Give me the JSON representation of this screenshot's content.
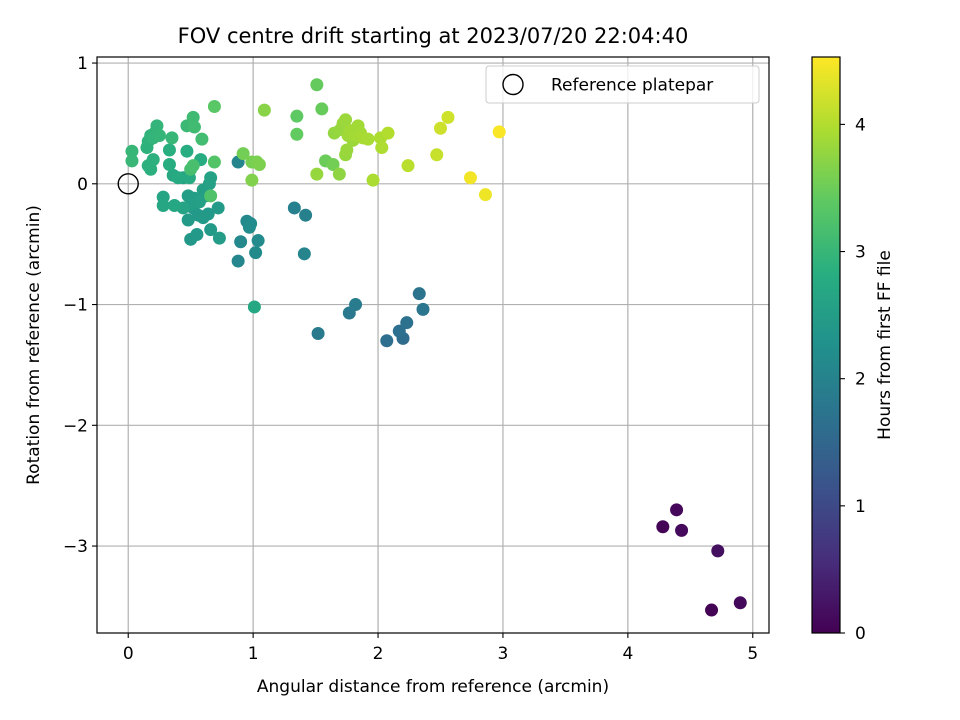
{
  "chart_data": {
    "type": "scatter",
    "title": "FOV centre drift starting at 2023/07/20 22:04:40",
    "xlabel": "Angular distance from reference (arcmin)",
    "ylabel": "Rotation from reference (arcmin)",
    "xlim": [
      -0.25,
      5.13
    ],
    "ylim": [
      -3.72,
      1.05
    ],
    "xticks": [
      0,
      1,
      2,
      3,
      4,
      5
    ],
    "yticks": [
      -3,
      -2,
      -1,
      0,
      1
    ],
    "ytick_labels": [
      "−3",
      "−2",
      "−1",
      "0",
      "1"
    ],
    "grid": true,
    "legend": {
      "position": "top-right",
      "entries": [
        "Reference platepar"
      ]
    },
    "reference_point": {
      "x": 0.0,
      "y": 0.0,
      "label": "Reference platepar"
    },
    "colorbar": {
      "label": "Hours from first FF file",
      "range": [
        0,
        4.53
      ],
      "ticks": [
        0,
        1,
        2,
        3,
        4
      ],
      "colormap": "viridis"
    },
    "points": [
      {
        "x": 4.28,
        "y": -2.84,
        "c": 0.05
      },
      {
        "x": 4.39,
        "y": -2.7,
        "c": 0.08
      },
      {
        "x": 4.43,
        "y": -2.87,
        "c": 0.12
      },
      {
        "x": 4.72,
        "y": -3.04,
        "c": 0.18
      },
      {
        "x": 4.67,
        "y": -3.53,
        "c": 0.02
      },
      {
        "x": 4.9,
        "y": -3.47,
        "c": 0.1
      },
      {
        "x": 2.07,
        "y": -1.3,
        "c": 1.62
      },
      {
        "x": 2.17,
        "y": -1.22,
        "c": 1.65
      },
      {
        "x": 2.2,
        "y": -1.28,
        "c": 1.6
      },
      {
        "x": 2.23,
        "y": -1.15,
        "c": 1.7
      },
      {
        "x": 2.33,
        "y": -0.91,
        "c": 1.72
      },
      {
        "x": 2.36,
        "y": -1.04,
        "c": 1.75
      },
      {
        "x": 1.52,
        "y": -1.24,
        "c": 1.85
      },
      {
        "x": 1.77,
        "y": -1.07,
        "c": 1.82
      },
      {
        "x": 1.82,
        "y": -1.0,
        "c": 1.88
      },
      {
        "x": 1.33,
        "y": -0.2,
        "c": 1.95
      },
      {
        "x": 1.42,
        "y": -0.26,
        "c": 1.98
      },
      {
        "x": 1.41,
        "y": -0.58,
        "c": 2.02
      },
      {
        "x": 0.88,
        "y": 0.18,
        "c": 2.05
      },
      {
        "x": 0.88,
        "y": -0.64,
        "c": 2.08
      },
      {
        "x": 0.9,
        "y": -0.48,
        "c": 2.1
      },
      {
        "x": 0.95,
        "y": -0.31,
        "c": 2.12
      },
      {
        "x": 0.98,
        "y": -0.33,
        "c": 2.15
      },
      {
        "x": 0.97,
        "y": -0.36,
        "c": 2.18
      },
      {
        "x": 1.02,
        "y": -0.57,
        "c": 2.14
      },
      {
        "x": 1.04,
        "y": -0.47,
        "c": 2.16
      },
      {
        "x": 0.5,
        "y": -0.46,
        "c": 2.4
      },
      {
        "x": 0.55,
        "y": -0.42,
        "c": 2.42
      },
      {
        "x": 0.48,
        "y": -0.3,
        "c": 2.45
      },
      {
        "x": 0.52,
        "y": -0.2,
        "c": 2.4
      },
      {
        "x": 0.56,
        "y": -0.26,
        "c": 2.42
      },
      {
        "x": 0.6,
        "y": -0.28,
        "c": 2.44
      },
      {
        "x": 0.64,
        "y": -0.25,
        "c": 2.43
      },
      {
        "x": 0.66,
        "y": -0.38,
        "c": 2.45
      },
      {
        "x": 0.72,
        "y": -0.2,
        "c": 2.46
      },
      {
        "x": 0.73,
        "y": -0.45,
        "c": 2.48
      },
      {
        "x": 0.48,
        "y": -0.1,
        "c": 2.5
      },
      {
        "x": 0.5,
        "y": -0.17,
        "c": 2.52
      },
      {
        "x": 0.53,
        "y": -0.12,
        "c": 2.5
      },
      {
        "x": 0.57,
        "y": -0.15,
        "c": 2.55
      },
      {
        "x": 0.6,
        "y": -0.05,
        "c": 2.53
      },
      {
        "x": 0.62,
        "y": -0.1,
        "c": 2.54
      },
      {
        "x": 0.65,
        "y": 0.0,
        "c": 2.56
      },
      {
        "x": 0.66,
        "y": 0.05,
        "c": 2.58
      },
      {
        "x": 0.44,
        "y": 0.05,
        "c": 2.6
      },
      {
        "x": 0.44,
        "y": -0.2,
        "c": 2.62
      },
      {
        "x": 1.01,
        "y": -1.02,
        "c": 2.7
      },
      {
        "x": 0.28,
        "y": -0.11,
        "c": 2.66
      },
      {
        "x": 0.28,
        "y": -0.18,
        "c": 2.68
      },
      {
        "x": 0.37,
        "y": -0.18,
        "c": 2.7
      },
      {
        "x": 0.36,
        "y": 0.07,
        "c": 2.72
      },
      {
        "x": 0.4,
        "y": 0.05,
        "c": 2.74
      },
      {
        "x": 0.49,
        "y": 0.05,
        "c": 2.76
      },
      {
        "x": 0.58,
        "y": 0.2,
        "c": 2.78
      },
      {
        "x": 0.47,
        "y": 0.27,
        "c": 2.8
      },
      {
        "x": 0.33,
        "y": 0.16,
        "c": 2.82
      },
      {
        "x": 0.33,
        "y": 0.28,
        "c": 2.84
      },
      {
        "x": 0.18,
        "y": 0.12,
        "c": 2.86
      },
      {
        "x": 0.16,
        "y": 0.15,
        "c": 2.88
      },
      {
        "x": 0.2,
        "y": 0.2,
        "c": 2.88
      },
      {
        "x": 0.15,
        "y": 0.3,
        "c": 2.9
      },
      {
        "x": 0.16,
        "y": 0.35,
        "c": 2.9
      },
      {
        "x": 0.18,
        "y": 0.4,
        "c": 2.92
      },
      {
        "x": 0.2,
        "y": 0.38,
        "c": 2.95
      },
      {
        "x": 0.22,
        "y": 0.43,
        "c": 2.94
      },
      {
        "x": 0.23,
        "y": 0.48,
        "c": 2.96
      },
      {
        "x": 0.25,
        "y": 0.4,
        "c": 2.98
      },
      {
        "x": 0.03,
        "y": 0.27,
        "c": 3.0
      },
      {
        "x": 0.03,
        "y": 0.19,
        "c": 3.02
      },
      {
        "x": 0.35,
        "y": 0.38,
        "c": 3.0
      },
      {
        "x": 0.47,
        "y": 0.48,
        "c": 3.05
      },
      {
        "x": 0.52,
        "y": 0.55,
        "c": 3.08
      },
      {
        "x": 0.53,
        "y": 0.47,
        "c": 3.1
      },
      {
        "x": 0.59,
        "y": 0.37,
        "c": 3.12
      },
      {
        "x": 0.5,
        "y": 0.12,
        "c": 3.15
      },
      {
        "x": 0.52,
        "y": 0.15,
        "c": 3.18
      },
      {
        "x": 0.66,
        "y": -0.1,
        "c": 3.25
      },
      {
        "x": 0.69,
        "y": 0.18,
        "c": 3.28
      },
      {
        "x": 0.69,
        "y": 0.64,
        "c": 3.35
      },
      {
        "x": 0.92,
        "y": 0.25,
        "c": 3.55
      },
      {
        "x": 0.99,
        "y": 0.18,
        "c": 3.58
      },
      {
        "x": 1.03,
        "y": 0.18,
        "c": 3.6
      },
      {
        "x": 1.05,
        "y": 0.16,
        "c": 3.62
      },
      {
        "x": 0.99,
        "y": 0.03,
        "c": 3.65
      },
      {
        "x": 1.09,
        "y": 0.61,
        "c": 3.7
      },
      {
        "x": 1.35,
        "y": 0.56,
        "c": 3.4
      },
      {
        "x": 1.35,
        "y": 0.41,
        "c": 3.42
      },
      {
        "x": 1.51,
        "y": 0.82,
        "c": 3.44
      },
      {
        "x": 1.55,
        "y": 0.62,
        "c": 3.46
      },
      {
        "x": 1.58,
        "y": 0.19,
        "c": 3.5
      },
      {
        "x": 1.64,
        "y": 0.16,
        "c": 3.55
      },
      {
        "x": 1.51,
        "y": 0.08,
        "c": 3.8
      },
      {
        "x": 1.69,
        "y": 0.08,
        "c": 3.75
      },
      {
        "x": 1.65,
        "y": 0.42,
        "c": 3.78
      },
      {
        "x": 1.7,
        "y": 0.45,
        "c": 3.8
      },
      {
        "x": 1.72,
        "y": 0.5,
        "c": 3.82
      },
      {
        "x": 1.74,
        "y": 0.53,
        "c": 3.84
      },
      {
        "x": 1.76,
        "y": 0.4,
        "c": 3.86
      },
      {
        "x": 1.78,
        "y": 0.44,
        "c": 3.88
      },
      {
        "x": 1.8,
        "y": 0.36,
        "c": 3.85
      },
      {
        "x": 1.82,
        "y": 0.4,
        "c": 3.9
      },
      {
        "x": 1.84,
        "y": 0.48,
        "c": 3.88
      },
      {
        "x": 1.86,
        "y": 0.42,
        "c": 3.9
      },
      {
        "x": 1.88,
        "y": 0.38,
        "c": 3.92
      },
      {
        "x": 1.92,
        "y": 0.37,
        "c": 3.93
      },
      {
        "x": 1.74,
        "y": 0.24,
        "c": 3.8
      },
      {
        "x": 1.75,
        "y": 0.28,
        "c": 3.82
      },
      {
        "x": 1.96,
        "y": 0.03,
        "c": 3.95
      },
      {
        "x": 2.02,
        "y": 0.38,
        "c": 3.96
      },
      {
        "x": 2.03,
        "y": 0.3,
        "c": 3.97
      },
      {
        "x": 2.08,
        "y": 0.42,
        "c": 4.0
      },
      {
        "x": 2.24,
        "y": 0.15,
        "c": 4.05
      },
      {
        "x": 2.47,
        "y": 0.24,
        "c": 4.15
      },
      {
        "x": 2.5,
        "y": 0.46,
        "c": 4.18
      },
      {
        "x": 2.56,
        "y": 0.55,
        "c": 4.2
      },
      {
        "x": 2.74,
        "y": 0.05,
        "c": 4.45
      },
      {
        "x": 2.86,
        "y": -0.09,
        "c": 4.43
      },
      {
        "x": 2.97,
        "y": 0.43,
        "c": 4.5
      }
    ]
  }
}
